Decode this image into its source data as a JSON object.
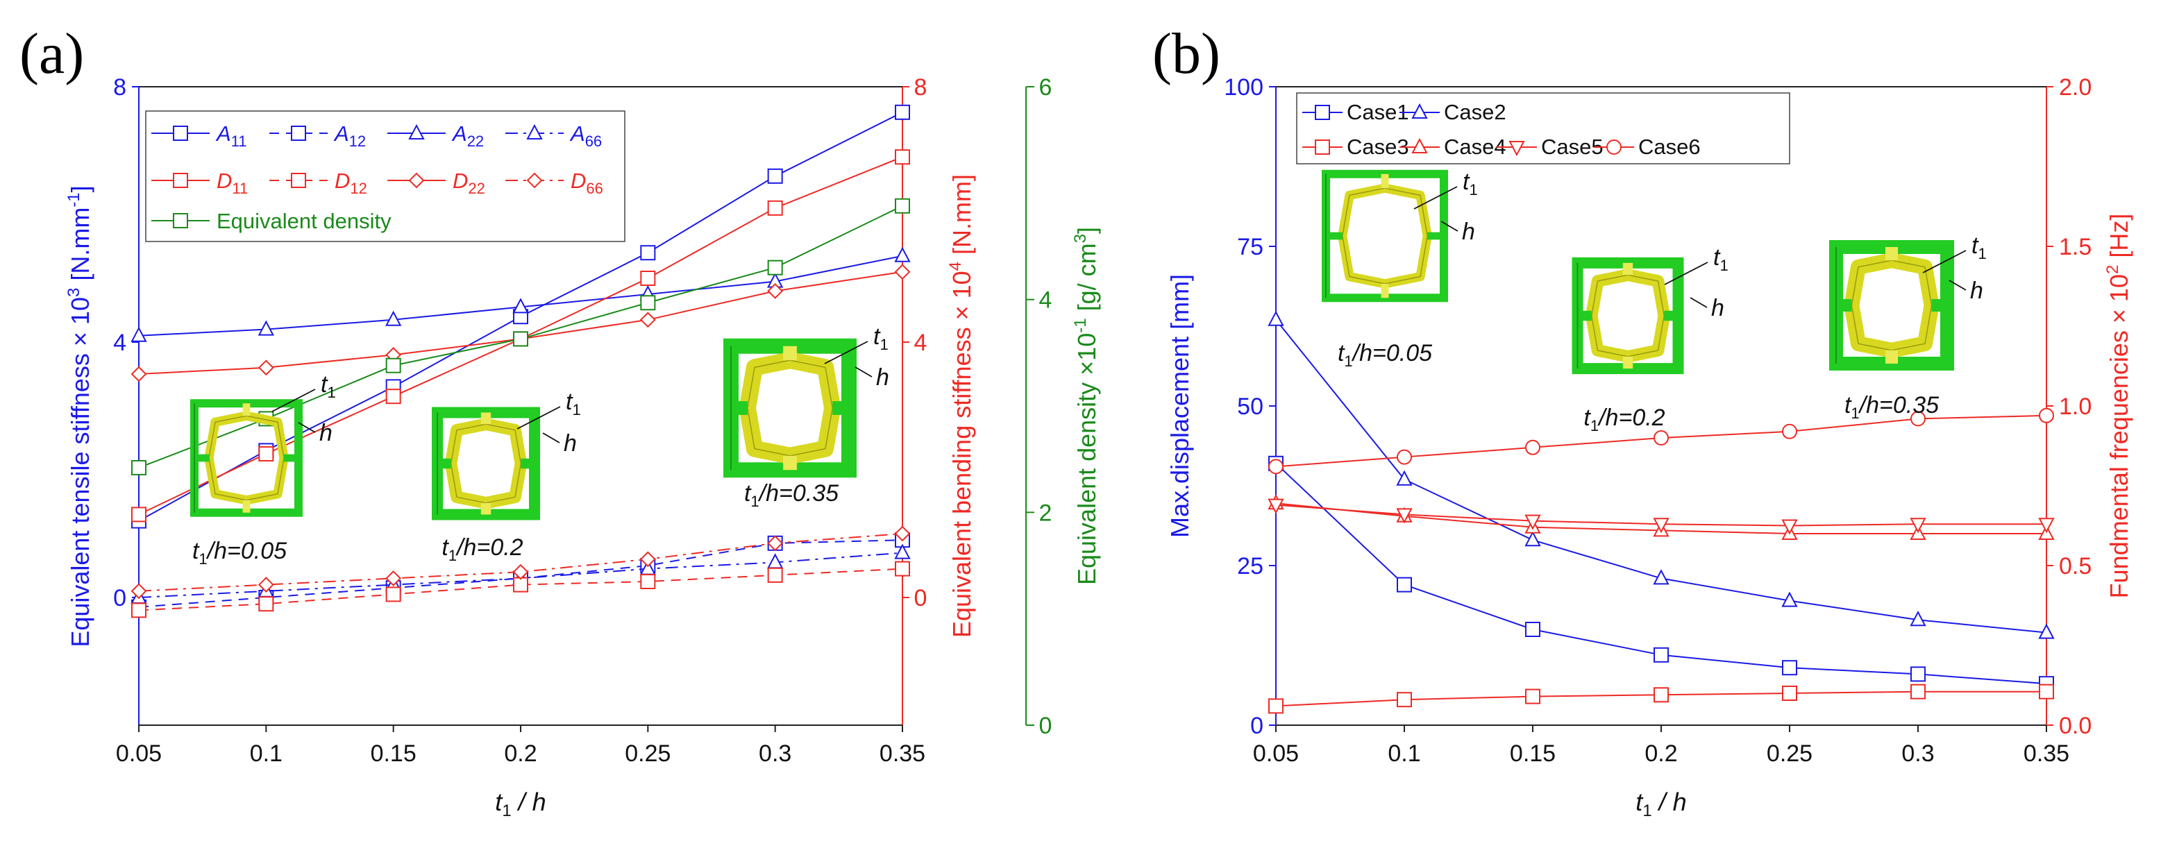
{
  "panels": {
    "a": {
      "label": "(a)"
    },
    "b": {
      "label": "(b)"
    }
  },
  "colors": {
    "blue": "#1a1ae6",
    "red": "#ee2a24",
    "green": "#1a8a1a"
  },
  "chart_data": [
    {
      "type": "line",
      "panel": "a",
      "x": [
        0.05,
        0.1,
        0.15,
        0.2,
        0.25,
        0.3,
        0.35
      ],
      "xticks": [
        "0.05",
        "0.1",
        "0.15",
        "0.2",
        "0.25",
        "0.3",
        "0.35"
      ],
      "xlabel_var": "t",
      "xlabel_sub": "1",
      "xlabel_tail": " / h",
      "xlim": [
        0.05,
        0.35
      ],
      "axes": {
        "left": {
          "ylim": [
            -2,
            8
          ],
          "ticks": [
            "0",
            "4",
            "8"
          ],
          "label_main": "Equivalent tensile stiffness × 10",
          "label_sup": "3",
          "label_unit": " [N.mm",
          "label_unit_sup": "-1",
          "label_end": "]",
          "color": "#1a1ae6"
        },
        "right1": {
          "ylim": [
            -2,
            8
          ],
          "ticks": [
            "0",
            "4",
            "8"
          ],
          "label_main": "Equivalent bending stiffness × 10",
          "label_sup": "4",
          "label_end": " [N.mm]",
          "color": "#ee2a24"
        },
        "right2": {
          "ylim": [
            0,
            6
          ],
          "ticks": [
            "0",
            "2",
            "4",
            "6"
          ],
          "label_main": "Equivalent density ×10",
          "label_sup": "-1",
          "label_mid": " [g/ cm",
          "label_sup2": "3",
          "label_end": "]",
          "color": "#1a8a1a"
        }
      },
      "series": [
        {
          "name": "A",
          "sub": "11",
          "axis": "left",
          "color": "#1a1ae6",
          "dash": "solid",
          "marker": "square",
          "values": [
            1.2,
            2.3,
            3.3,
            4.4,
            5.4,
            6.6,
            7.6
          ]
        },
        {
          "name": "A",
          "sub": "12",
          "axis": "left",
          "color": "#1a1ae6",
          "dash": "dashed",
          "marker": "square",
          "values": [
            -0.15,
            0.0,
            0.15,
            0.3,
            0.5,
            0.85,
            0.9
          ]
        },
        {
          "name": "A",
          "sub": "22",
          "axis": "left",
          "color": "#1a1ae6",
          "dash": "solid",
          "marker": "triangle",
          "values": [
            4.1,
            4.2,
            4.35,
            4.55,
            4.75,
            4.95,
            5.35
          ]
        },
        {
          "name": "A",
          "sub": "66",
          "axis": "left",
          "color": "#1a1ae6",
          "dash": "dashdot",
          "marker": "triangle",
          "values": [
            0.0,
            0.1,
            0.2,
            0.3,
            0.45,
            0.55,
            0.7
          ]
        },
        {
          "name": "D",
          "sub": "11",
          "axis": "right1",
          "color": "#ee2a24",
          "dash": "solid",
          "marker": "square",
          "values": [
            1.3,
            2.25,
            3.15,
            4.05,
            5.0,
            6.1,
            6.9
          ]
        },
        {
          "name": "D",
          "sub": "12",
          "axis": "right1",
          "color": "#ee2a24",
          "dash": "dashed",
          "marker": "square",
          "values": [
            -0.2,
            -0.1,
            0.05,
            0.2,
            0.25,
            0.35,
            0.45
          ]
        },
        {
          "name": "D",
          "sub": "22",
          "axis": "right1",
          "color": "#ee2a24",
          "dash": "solid",
          "marker": "diamond",
          "values": [
            3.5,
            3.6,
            3.8,
            4.05,
            4.35,
            4.8,
            5.1
          ]
        },
        {
          "name": "D",
          "sub": "66",
          "axis": "right1",
          "color": "#ee2a24",
          "dash": "dashdot",
          "marker": "diamond",
          "values": [
            0.1,
            0.2,
            0.3,
            0.4,
            0.6,
            0.85,
            1.0
          ]
        },
        {
          "name": "Equivalent density",
          "sub": "",
          "axis": "right2",
          "color": "#1a8a1a",
          "dash": "solid",
          "marker": "square",
          "values": [
            2.42,
            2.88,
            3.38,
            3.63,
            3.97,
            4.3,
            4.88
          ]
        }
      ]
    },
    {
      "type": "line",
      "panel": "b",
      "x": [
        0.05,
        0.1,
        0.15,
        0.2,
        0.25,
        0.3,
        0.35
      ],
      "xticks": [
        "0.05",
        "0.1",
        "0.15",
        "0.2",
        "0.25",
        "0.3",
        "0.35"
      ],
      "xlabel_var": "t",
      "xlabel_sub": "1",
      "xlabel_tail": " / h",
      "xlim": [
        0.05,
        0.35
      ],
      "axes": {
        "left": {
          "ylim": [
            0,
            100
          ],
          "ticks": [
            "0",
            "25",
            "50",
            "75",
            "100"
          ],
          "label_main": "Max.displacement [mm]",
          "color": "#1a1ae6"
        },
        "right": {
          "ylim": [
            0,
            2
          ],
          "ticks": [
            "0.0",
            "0.5",
            "1.0",
            "1.5",
            "2.0"
          ],
          "label_main": "Fundmental frequencies × 10",
          "label_sup": "2",
          "label_end": " [Hz]",
          "color": "#ee2a24"
        }
      },
      "series": [
        {
          "name": "Case1",
          "axis": "left",
          "color": "#1a1ae6",
          "marker": "square",
          "values": [
            41,
            22,
            15,
            11,
            9,
            8,
            6.5
          ]
        },
        {
          "name": "Case2",
          "axis": "left",
          "color": "#1a1ae6",
          "marker": "triangle",
          "values": [
            63.5,
            38.5,
            29,
            23,
            19.5,
            16.5,
            14.5
          ]
        },
        {
          "name": "Case3",
          "axis": "right",
          "color": "#ee2a24",
          "marker": "square",
          "values": [
            0.06,
            0.08,
            0.09,
            0.095,
            0.1,
            0.105,
            0.105
          ]
        },
        {
          "name": "Case4",
          "axis": "right",
          "color": "#ee2a24",
          "marker": "triangle",
          "values": [
            0.695,
            0.655,
            0.62,
            0.61,
            0.6,
            0.6,
            0.6
          ]
        },
        {
          "name": "Case5",
          "axis": "right",
          "color": "#ee2a24",
          "marker": "invtriangle",
          "values": [
            0.69,
            0.66,
            0.64,
            0.63,
            0.625,
            0.63,
            0.63
          ]
        },
        {
          "name": "Case6",
          "axis": "right",
          "color": "#ee2a24",
          "marker": "circle",
          "values": [
            0.81,
            0.84,
            0.87,
            0.9,
            0.92,
            0.96,
            0.97
          ]
        }
      ]
    }
  ],
  "insets": {
    "a": [
      {
        "t1": "t",
        "t1_sub": "1",
        "h": "h",
        "caption_var": "t",
        "caption_sub": "1",
        "caption_tail": "/h=0.05"
      },
      {
        "t1": "t",
        "t1_sub": "1",
        "h": "h",
        "caption_var": "t",
        "caption_sub": "1",
        "caption_tail": "/h=0.2"
      },
      {
        "t1": "t",
        "t1_sub": "1",
        "h": "h",
        "caption_var": "t",
        "caption_sub": "1",
        "caption_tail": "/h=0.35"
      }
    ],
    "b": [
      {
        "t1": "t",
        "t1_sub": "1",
        "h": "h",
        "caption_var": "t",
        "caption_sub": "1",
        "caption_tail": "/h=0.05"
      },
      {
        "t1": "t",
        "t1_sub": "1",
        "h": "h",
        "caption_var": "t",
        "caption_sub": "1",
        "caption_tail": "/h=0.2"
      },
      {
        "t1": "t",
        "t1_sub": "1",
        "h": "h",
        "caption_var": "t",
        "caption_sub": "1",
        "caption_tail": "/h=0.35"
      }
    ]
  }
}
